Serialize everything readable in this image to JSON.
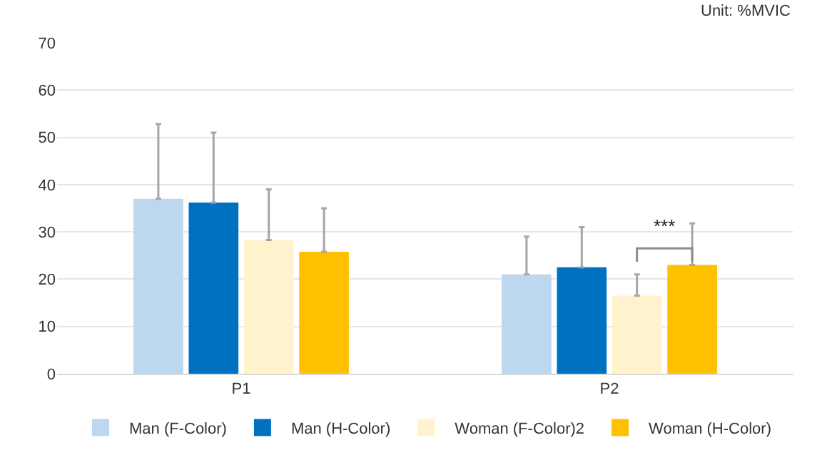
{
  "chart_data": {
    "type": "bar",
    "categories": [
      "P1",
      "P2"
    ],
    "series": [
      {
        "name": "Man (F-Color)",
        "color": "#bdd7ee",
        "values": [
          37,
          21
        ],
        "errors": [
          [
            37,
            52.8
          ],
          [
            21,
            29
          ]
        ]
      },
      {
        "name": "Man (H-Color)",
        "color": "#0070c0",
        "values": [
          36.2,
          22.5
        ],
        "errors": [
          [
            36.2,
            51
          ],
          [
            22.5,
            31
          ]
        ]
      },
      {
        "name": "Woman (F-Color)2",
        "color": "#fff2cc",
        "values": [
          28.3,
          16.5
        ],
        "errors": [
          [
            28.3,
            39
          ],
          [
            16.5,
            21
          ]
        ]
      },
      {
        "name": "Woman (H-Color)",
        "color": "#ffc000",
        "values": [
          25.8,
          23
        ],
        "errors": [
          [
            25.8,
            35
          ],
          [
            23,
            31.8
          ]
        ]
      }
    ],
    "ylim": [
      0,
      70
    ],
    "yticks": [
      0,
      10,
      20,
      30,
      40,
      50,
      60,
      70
    ],
    "grid": "y",
    "legend": "bottom",
    "annotations": [
      "Unit: %MVIC",
      "***"
    ]
  }
}
